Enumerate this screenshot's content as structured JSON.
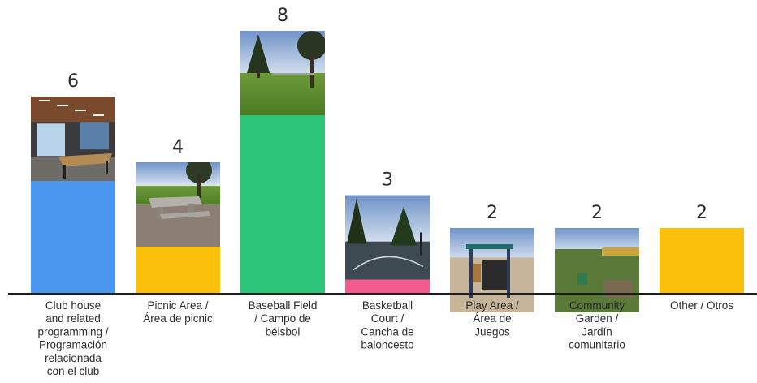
{
  "chart_data": {
    "type": "bar",
    "title": "",
    "xlabel": "",
    "ylabel": "",
    "ylim": [
      0,
      8
    ],
    "grid": false,
    "legend": "none",
    "categories": [
      "Club house and related programming / Programación relacionada con el club",
      "Picnic Area / Área de picnic",
      "Baseball Field / Campo de béisbol",
      "Basketball Court / Cancha de baloncesto",
      "Play Area / Área de Juegos",
      "Community Garden / Jardín comunitario",
      "Other / Otros"
    ],
    "category_label_lines": [
      [
        "Club house",
        "and related",
        "programming /",
        "Programación",
        "relacionada",
        "con el club"
      ],
      [
        "Picnic Area /",
        "Área de picnic"
      ],
      [
        "Baseball Field",
        "/ Campo de",
        "béisbol"
      ],
      [
        "Basketball",
        "Court /",
        "Cancha de",
        "baloncesto"
      ],
      [
        "Play Area /",
        "Área de",
        "Juegos"
      ],
      [
        "Community",
        "Garden /",
        "Jardín",
        "comunitario"
      ],
      [
        "Other / Otros"
      ]
    ],
    "values": [
      6,
      4,
      8,
      3,
      2,
      2,
      2
    ],
    "data_labels": [
      "6",
      "4",
      "8",
      "3",
      "2",
      "2",
      "2"
    ],
    "bar_colors": [
      "#4b96ee",
      "#fbc10a",
      "#2dc579",
      "#f45a8c",
      "#8666c6",
      "#4b96ee",
      "#fbc10a"
    ],
    "photos": [
      {
        "scene": "clubhouse-interior",
        "present": true
      },
      {
        "scene": "picnic-table",
        "present": true
      },
      {
        "scene": "baseball-field",
        "present": true
      },
      {
        "scene": "basketball-court",
        "present": true
      },
      {
        "scene": "playground",
        "present": true
      },
      {
        "scene": "community-garden",
        "present": true
      },
      {
        "scene": "none",
        "present": false
      }
    ]
  }
}
